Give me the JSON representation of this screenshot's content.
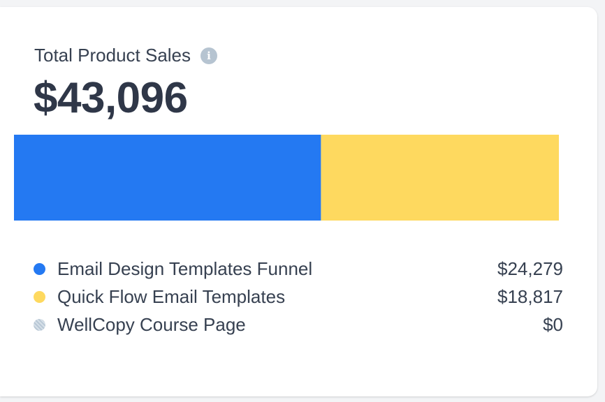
{
  "card": {
    "title": "Total Product Sales",
    "info_icon": "info-icon",
    "total": "$43,096"
  },
  "legend": [
    {
      "label": "Email Design Templates Funnel",
      "value": "$24,279",
      "color": "#2479f2",
      "pattern": "solid"
    },
    {
      "label": "Quick Flow Email Templates",
      "value": "$18,817",
      "color": "#fed95f",
      "pattern": "solid"
    },
    {
      "label": "WellCopy Course Page",
      "value": "$0",
      "color": "#b9c8d6",
      "pattern": "hatched"
    }
  ],
  "chart_data": {
    "type": "bar",
    "orientation": "horizontal-stacked",
    "title": "Total Product Sales",
    "total": 43096,
    "categories": [
      "Email Design Templates Funnel",
      "Quick Flow Email Templates",
      "WellCopy Course Page"
    ],
    "values": [
      24279,
      18817,
      0
    ],
    "colors": [
      "#2479f2",
      "#fed95f",
      "#b9c8d6"
    ],
    "legend_position": "bottom",
    "grid": false
  }
}
